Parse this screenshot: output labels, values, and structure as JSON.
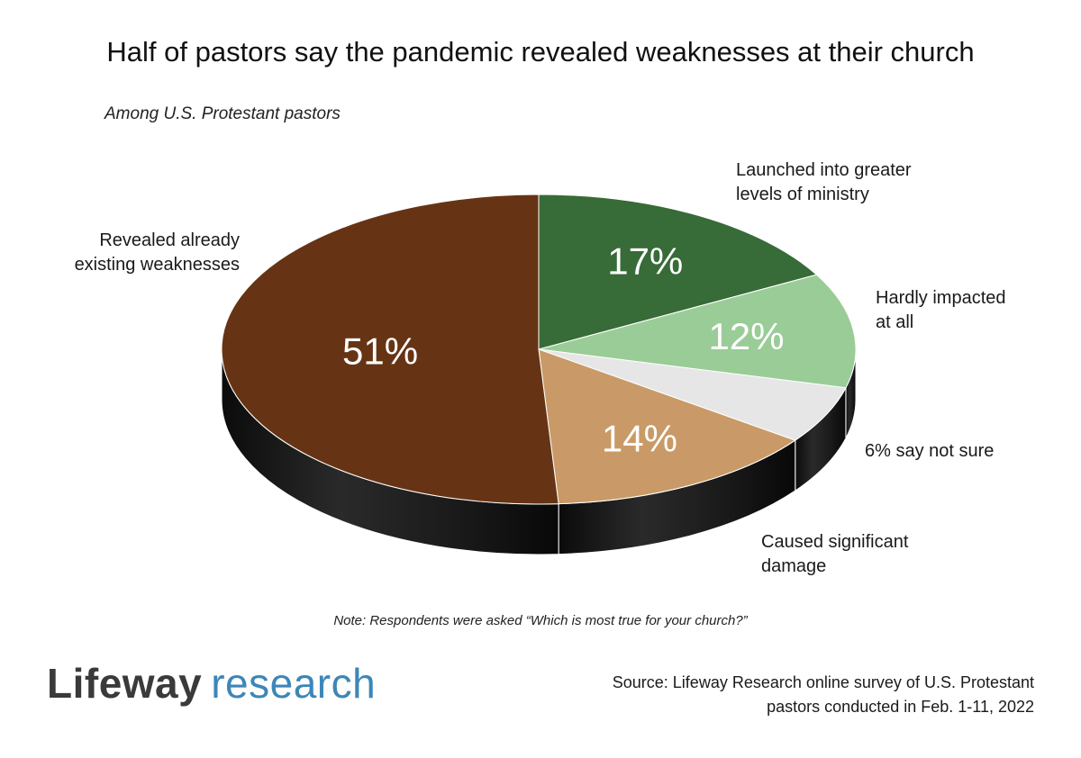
{
  "chart_data": {
    "type": "pie",
    "title": "Half of pastors say the pandemic revealed weaknesses at their church",
    "subtitle": "Among U.S. Protestant pastors",
    "slices": [
      {
        "key": "launched",
        "label_lines": [
          "Launched into greater",
          "levels of ministry"
        ],
        "value": 17,
        "value_label": "17%",
        "color": "#376b37"
      },
      {
        "key": "hardly",
        "label_lines": [
          "Hardly impacted",
          "at all"
        ],
        "value": 12,
        "value_label": "12%",
        "color": "#9acc97"
      },
      {
        "key": "notsure",
        "label_lines": [
          "6% say not sure"
        ],
        "value": 6,
        "value_label": "",
        "color": "#e6e6e6"
      },
      {
        "key": "damage",
        "label_lines": [
          "Caused significant",
          "damage"
        ],
        "value": 14,
        "value_label": "14%",
        "color": "#c99a67"
      },
      {
        "key": "revealed",
        "label_lines": [
          "Revealed already",
          "existing weaknesses"
        ],
        "value": 51,
        "value_label": "51%",
        "color": "#663414"
      }
    ]
  },
  "note": "Note: Respondents were asked “Which is most true for your church?”",
  "logo": {
    "word1": "Lifeway",
    "word2": "research"
  },
  "source": {
    "line1": "Source: Lifeway Research online survey of U.S. Protestant",
    "line2": "pastors conducted in Feb. 1-11, 2022"
  }
}
